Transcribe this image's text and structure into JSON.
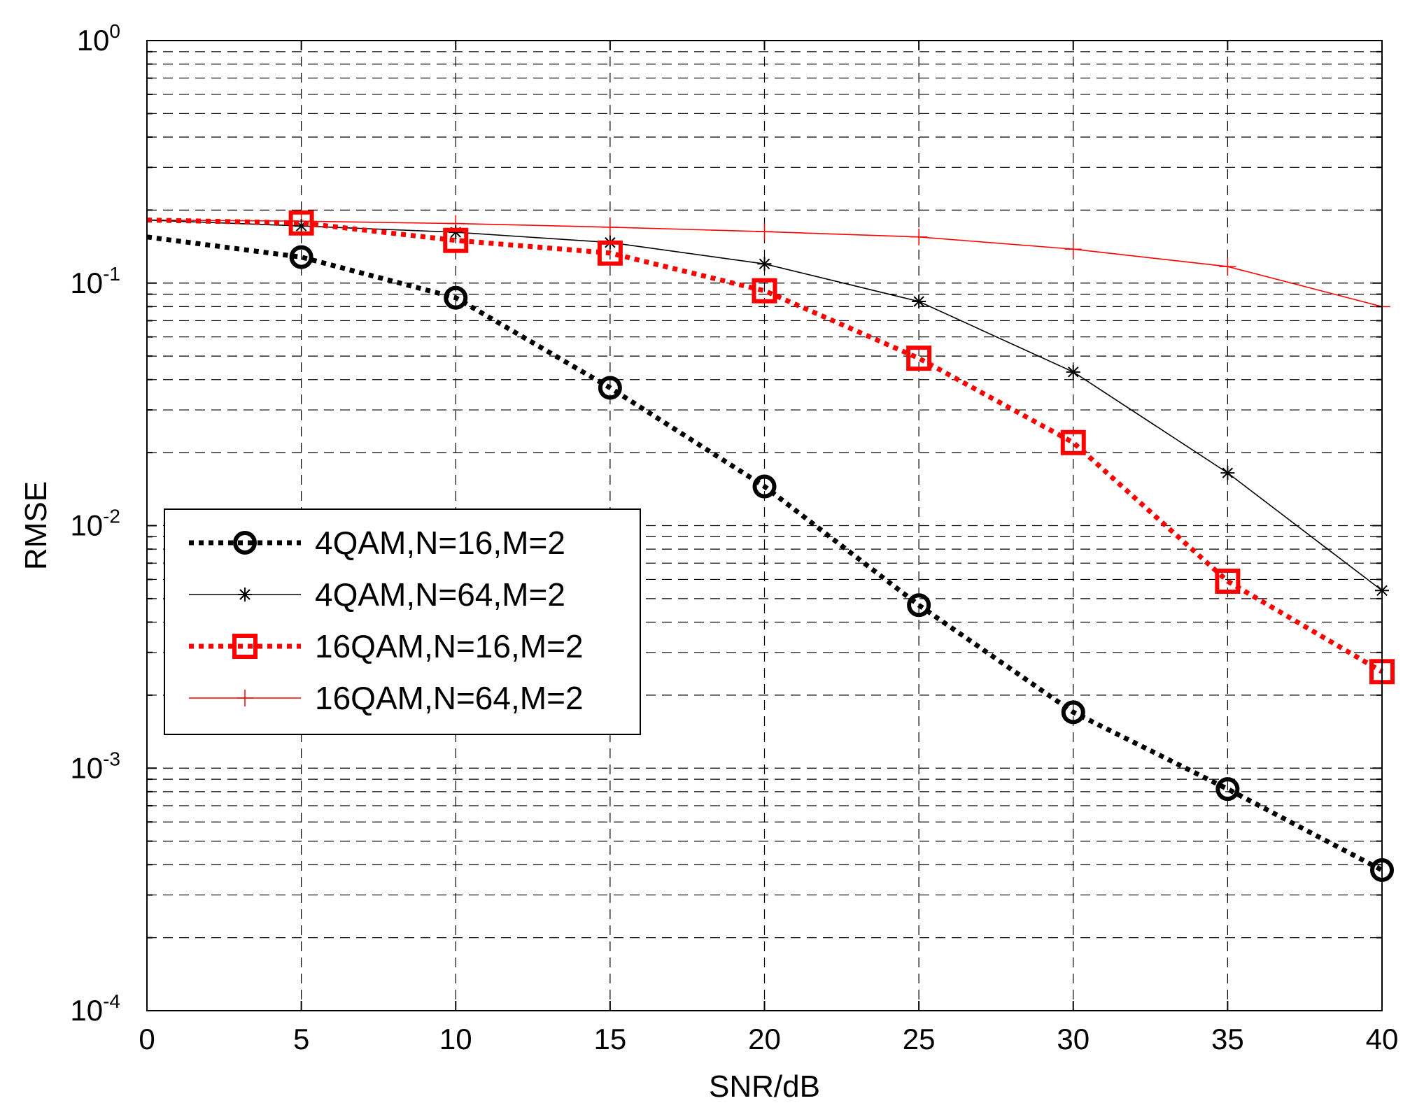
{
  "chart_data": {
    "type": "line",
    "title": "",
    "xlabel": "SNR/dB",
    "ylabel": "RMSE",
    "x": [
      0,
      5,
      10,
      15,
      20,
      25,
      30,
      35,
      40
    ],
    "xlim": [
      0,
      40
    ],
    "ylim": [
      0.0001,
      1
    ],
    "yscale": "log",
    "grid": true,
    "legend_position": "lower-left",
    "xticks": [
      "0",
      "5",
      "10",
      "15",
      "20",
      "25",
      "30",
      "35",
      "40"
    ],
    "yticks": [
      {
        "base": "10",
        "exp": "-4",
        "value": 0.0001
      },
      {
        "base": "10",
        "exp": "-3",
        "value": 0.001
      },
      {
        "base": "10",
        "exp": "-2",
        "value": 0.01
      },
      {
        "base": "10",
        "exp": "-1",
        "value": 0.1
      },
      {
        "base": "10",
        "exp": "0",
        "value": 1
      }
    ],
    "series": [
      {
        "name": "4QAM,N=16,M=2",
        "color": "#000000",
        "style": "dotted-thick",
        "marker": "circle",
        "values": [
          0.155,
          0.128,
          0.087,
          0.037,
          0.0145,
          0.0047,
          0.0017,
          0.00082,
          0.00038
        ]
      },
      {
        "name": "4QAM,N=64,M=2",
        "color": "#000000",
        "style": "solid-thin",
        "marker": "star",
        "values": [
          0.182,
          0.172,
          0.162,
          0.147,
          0.12,
          0.084,
          0.043,
          0.0165,
          0.0054
        ]
      },
      {
        "name": "16QAM,N=16,M=2",
        "color": "#ff0000",
        "style": "dotted-thick",
        "marker": "square",
        "values": [
          0.182,
          0.177,
          0.15,
          0.133,
          0.093,
          0.049,
          0.022,
          0.0059,
          0.0025
        ]
      },
      {
        "name": "16QAM,N=64,M=2",
        "color": "#ff0000",
        "style": "solid-thin",
        "marker": "plus",
        "values": [
          0.182,
          0.18,
          0.176,
          0.17,
          0.163,
          0.155,
          0.138,
          0.117,
          0.08
        ]
      }
    ]
  }
}
